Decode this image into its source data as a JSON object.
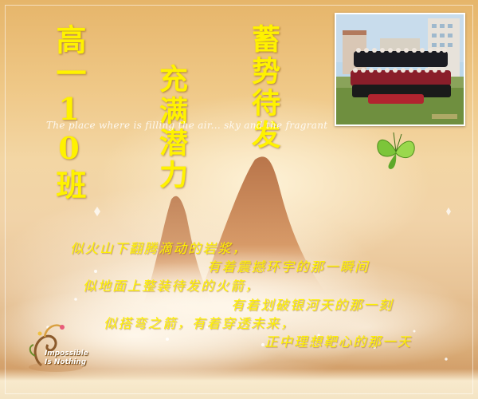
{
  "title_left": "高一10班",
  "title_middle": "充满潜力",
  "title_right": "蓄势待发",
  "caption": "The place where is filling the air... sky and the fragrant",
  "poem": [
    "似火山下翻腾滴动的岩浆，",
    "有着震撼环宇的那一瞬间",
    "似地面上整装待发的火箭，",
    "有着划破银河天的那一刻",
    "似搭弯之箭，有着穿透未来，",
    "正中理想靶心的那一天"
  ],
  "logo": {
    "line1": "Impossible",
    "line2": "Is Nothing"
  },
  "colors": {
    "title": "#fff200",
    "background_top": "#e6b56a",
    "background_bottom": "#c98d58"
  },
  "icons": [
    "green-butterfly-icon",
    "swirl-flower-logo-icon"
  ]
}
